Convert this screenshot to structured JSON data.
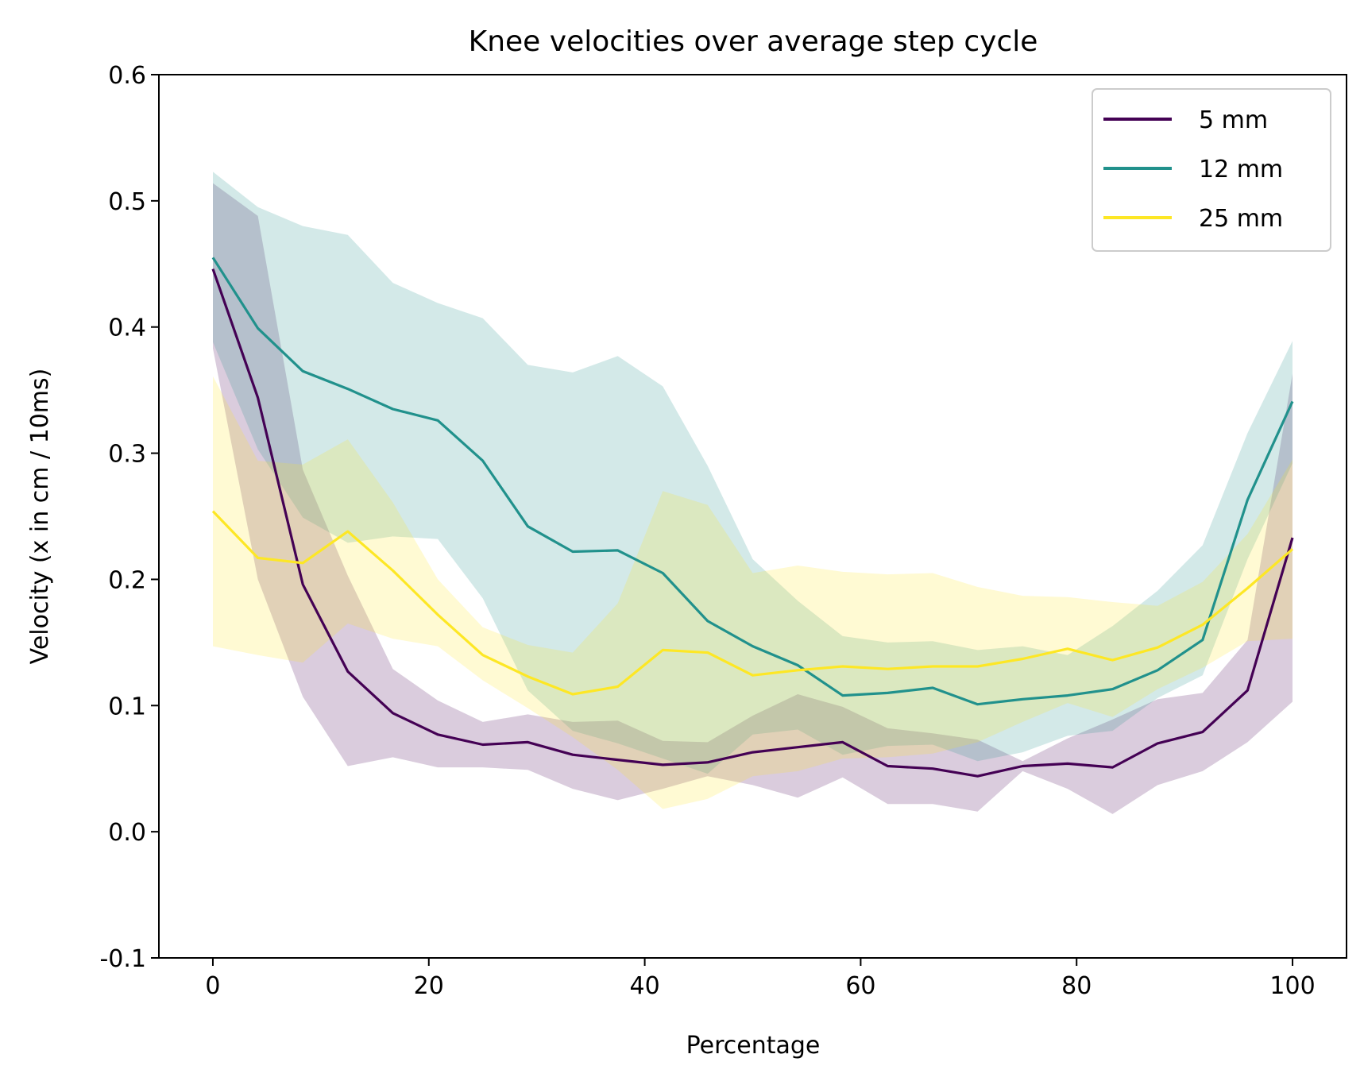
{
  "chart_data": {
    "type": "line",
    "title": "Knee velocities over average step cycle",
    "xlabel": "Percentage",
    "ylabel": "Velocity (x in cm / 10ms)",
    "xlim": [
      -5,
      105
    ],
    "ylim": [
      -0.1,
      0.6
    ],
    "xticks": [
      0,
      20,
      40,
      60,
      80,
      100
    ],
    "xtick_labels": [
      "0",
      "20",
      "40",
      "60",
      "80",
      "100"
    ],
    "yticks": [
      -0.1,
      0.0,
      0.1,
      0.2,
      0.3,
      0.4,
      0.5,
      0.6
    ],
    "ytick_labels": [
      "-0.1",
      "0.0",
      "0.1",
      "0.2",
      "0.3",
      "0.4",
      "0.5",
      "0.6"
    ],
    "grid": false,
    "legend_position": "top-right",
    "x": [
      0,
      4.17,
      8.33,
      12.5,
      16.67,
      20.83,
      25,
      29.17,
      33.33,
      37.5,
      41.67,
      45.83,
      50,
      54.17,
      58.33,
      62.5,
      66.67,
      70.83,
      75,
      79.17,
      83.33,
      87.5,
      91.67,
      95.83,
      100
    ],
    "series": [
      {
        "name": "5 mm",
        "color": "#440154",
        "values": [
          0.446,
          0.344,
          0.196,
          0.127,
          0.094,
          0.077,
          0.069,
          0.071,
          0.061,
          0.057,
          0.053,
          0.055,
          0.063,
          0.067,
          0.071,
          0.052,
          0.05,
          0.044,
          0.052,
          0.054,
          0.051,
          0.07,
          0.079,
          0.112,
          0.233
        ],
        "lower": [
          0.383,
          0.2,
          0.107,
          0.052,
          0.059,
          0.051,
          0.051,
          0.049,
          0.034,
          0.025,
          0.034,
          0.044,
          0.037,
          0.027,
          0.043,
          0.022,
          0.022,
          0.016,
          0.048,
          0.034,
          0.014,
          0.037,
          0.048,
          0.071,
          0.103
        ],
        "upper": [
          0.514,
          0.488,
          0.287,
          0.203,
          0.129,
          0.104,
          0.087,
          0.093,
          0.087,
          0.088,
          0.072,
          0.071,
          0.092,
          0.109,
          0.099,
          0.082,
          0.078,
          0.073,
          0.056,
          0.074,
          0.089,
          0.105,
          0.11,
          0.152,
          0.363
        ]
      },
      {
        "name": "12 mm",
        "color": "#21918c",
        "values": [
          0.455,
          0.399,
          0.365,
          0.351,
          0.335,
          0.326,
          0.294,
          0.242,
          0.222,
          0.223,
          0.205,
          0.167,
          0.147,
          0.132,
          0.108,
          0.11,
          0.114,
          0.101,
          0.105,
          0.108,
          0.113,
          0.128,
          0.152,
          0.263,
          0.341
        ],
        "lower": [
          0.388,
          0.303,
          0.249,
          0.229,
          0.234,
          0.232,
          0.185,
          0.112,
          0.08,
          0.07,
          0.058,
          0.046,
          0.077,
          0.081,
          0.061,
          0.068,
          0.069,
          0.056,
          0.063,
          0.076,
          0.08,
          0.106,
          0.124,
          0.216,
          0.292
        ],
        "upper": [
          0.523,
          0.495,
          0.48,
          0.473,
          0.435,
          0.419,
          0.407,
          0.37,
          0.364,
          0.377,
          0.353,
          0.29,
          0.216,
          0.183,
          0.155,
          0.15,
          0.151,
          0.144,
          0.147,
          0.14,
          0.163,
          0.191,
          0.227,
          0.316,
          0.389
        ]
      },
      {
        "name": "25 mm",
        "color": "#fde725",
        "values": [
          0.254,
          0.217,
          0.213,
          0.238,
          0.207,
          0.172,
          0.14,
          0.123,
          0.109,
          0.115,
          0.144,
          0.142,
          0.124,
          0.128,
          0.131,
          0.129,
          0.131,
          0.131,
          0.137,
          0.145,
          0.136,
          0.146,
          0.164,
          0.193,
          0.224
        ],
        "lower": [
          0.147,
          0.14,
          0.134,
          0.165,
          0.153,
          0.147,
          0.12,
          0.098,
          0.075,
          0.049,
          0.018,
          0.026,
          0.044,
          0.048,
          0.058,
          0.059,
          0.062,
          0.071,
          0.087,
          0.102,
          0.091,
          0.113,
          0.13,
          0.151,
          0.153
        ],
        "upper": [
          0.361,
          0.294,
          0.291,
          0.311,
          0.261,
          0.2,
          0.162,
          0.148,
          0.142,
          0.181,
          0.27,
          0.259,
          0.205,
          0.211,
          0.206,
          0.204,
          0.205,
          0.194,
          0.187,
          0.186,
          0.182,
          0.179,
          0.198,
          0.236,
          0.295
        ]
      }
    ]
  }
}
